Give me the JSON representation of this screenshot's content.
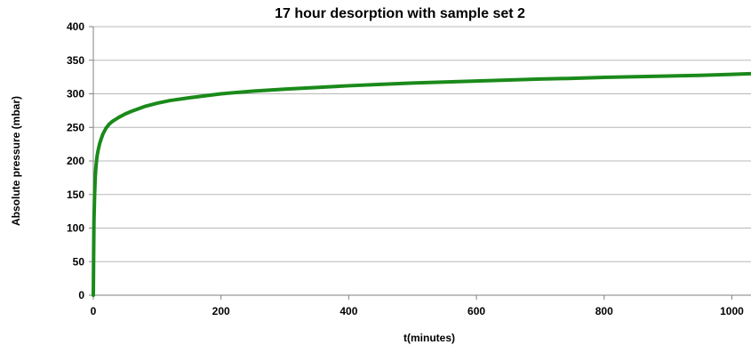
{
  "chart_data": {
    "type": "line",
    "title": "17 hour desorption with sample set 2",
    "xlabel": "t(minutes)",
    "ylabel": "Absolute pressure (mbar)",
    "xlim": [
      0,
      1030
    ],
    "ylim": [
      0,
      400
    ],
    "x_ticks": [
      0,
      200,
      400,
      600,
      800,
      1000
    ],
    "y_ticks": [
      0,
      50,
      100,
      150,
      200,
      250,
      300,
      350,
      400
    ],
    "x_tick_labels": [
      "0",
      "200",
      "400",
      "600",
      "800",
      "1000"
    ],
    "y_tick_labels": [
      "0",
      "50",
      "100",
      "150",
      "200",
      "250",
      "300",
      "350",
      "400"
    ],
    "grid": {
      "horizontal": true,
      "vertical": false
    },
    "legend": "none",
    "series": [
      {
        "color": "#1a8a1a",
        "x": [
          0,
          0.5,
          1,
          2,
          3,
          4,
          5,
          6,
          8,
          10,
          12,
          15,
          20,
          25,
          30,
          40,
          50,
          60,
          80,
          100,
          120,
          150,
          200,
          250,
          300,
          350,
          400,
          450,
          500,
          550,
          600,
          650,
          700,
          750,
          800,
          850,
          900,
          950,
          1000,
          1030
        ],
        "y": [
          0,
          60,
          110,
          150,
          175,
          190,
          200,
          208,
          218,
          226,
          232,
          240,
          249,
          255,
          259,
          265,
          270,
          274,
          281,
          286,
          290,
          294,
          300,
          304,
          307,
          309.5,
          312,
          314,
          316,
          317.5,
          319,
          320.5,
          322,
          323,
          324.5,
          325.5,
          326.5,
          327.5,
          329,
          330
        ]
      }
    ]
  }
}
